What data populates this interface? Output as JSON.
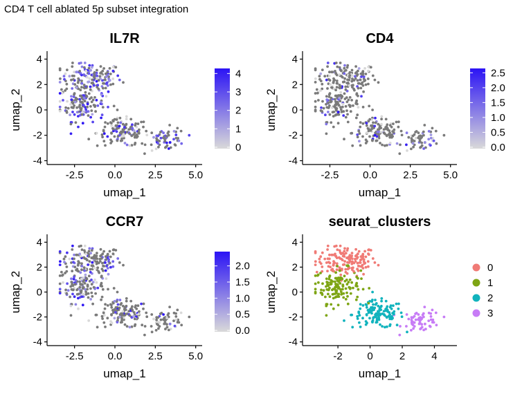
{
  "page_title": "CD4 T cell ablated 5p subset integration",
  "colors": {
    "gray": "#7a7a7a",
    "light_gray": "#d9d9d9",
    "blue": "#2b13f5",
    "cluster_0": "#f07b76",
    "cluster_1": "#7ea514",
    "cluster_2": "#11b3bd",
    "cluster_3": "#c77cf6"
  },
  "chart_data": [
    {
      "type": "scatter",
      "title": "IL7R",
      "xlabel": "umap_1",
      "ylabel": "umap_2",
      "xlim": [
        -4.2,
        5.4
      ],
      "ylim": [
        -4.3,
        4.3
      ],
      "xticks": [
        -2.5,
        0.0,
        2.5,
        5.0
      ],
      "xtick_labels": [
        "-2.5",
        "0.0",
        "2.5",
        "5.0"
      ],
      "yticks": [
        -4,
        -2,
        0,
        2,
        4
      ],
      "ytick_labels": [
        "-4",
        "-2",
        "0",
        "2",
        "4"
      ],
      "color_scale": {
        "min": 0,
        "max": 4.2,
        "ticks": [
          0,
          1,
          2,
          3,
          4
        ],
        "tick_labels": [
          "0",
          "1",
          "2",
          "3",
          "4"
        ]
      },
      "expression_fraction": 0.3,
      "max_expression": 4.2
    },
    {
      "type": "scatter",
      "title": "CD4",
      "xlabel": "umap_1",
      "ylabel": "umap_2",
      "xlim": [
        -4.2,
        5.4
      ],
      "ylim": [
        -4.3,
        4.3
      ],
      "xticks": [
        -2.5,
        0.0,
        2.5,
        5.0
      ],
      "xtick_labels": [
        "-2.5",
        "0.0",
        "2.5",
        "5.0"
      ],
      "yticks": [
        -4,
        -2,
        0,
        2,
        4
      ],
      "ytick_labels": [
        "-4",
        "-2",
        "0",
        "2",
        "4"
      ],
      "color_scale": {
        "min": 0,
        "max": 2.6,
        "ticks": [
          0,
          0.5,
          1.0,
          1.5,
          2.0,
          2.5
        ],
        "tick_labels": [
          "0.0",
          "0.5",
          "1.0",
          "1.5",
          "2.0",
          "2.5"
        ]
      },
      "expression_fraction": 0.12,
      "max_expression": 2.6
    },
    {
      "type": "scatter",
      "title": "CCR7",
      "xlabel": "umap_1",
      "ylabel": "umap_2",
      "xlim": [
        -4.2,
        5.4
      ],
      "ylim": [
        -4.3,
        4.3
      ],
      "xticks": [
        -2.5,
        0.0,
        2.5,
        5.0
      ],
      "xtick_labels": [
        "-2.5",
        "0.0",
        "2.5",
        "5.0"
      ],
      "yticks": [
        -4,
        -2,
        0,
        2,
        4
      ],
      "ytick_labels": [
        "-4",
        "-2",
        "0",
        "2",
        "4"
      ],
      "color_scale": {
        "min": 0,
        "max": 2.4,
        "ticks": [
          0,
          0.5,
          1.0,
          1.5,
          2.0
        ],
        "tick_labels": [
          "0.0",
          "0.5",
          "1.0",
          "1.5",
          "2.0"
        ]
      },
      "expression_fraction": 0.15,
      "max_expression": 2.4
    },
    {
      "type": "scatter",
      "title": "seurat_clusters",
      "xlabel": "umap_1",
      "ylabel": "umap_2",
      "xlim": [
        -4.2,
        5.4
      ],
      "ylim": [
        -4.3,
        4.3
      ],
      "xticks": [
        -2,
        0,
        2,
        4
      ],
      "xtick_labels": [
        "-2",
        "0",
        "2",
        "4"
      ],
      "yticks": [
        -4,
        -2,
        0,
        2,
        4
      ],
      "ytick_labels": [
        "-4",
        "-2",
        "0",
        "2",
        "4"
      ],
      "legend": [
        "0",
        "1",
        "2",
        "3"
      ],
      "legend_placement": "right",
      "clusters": [
        {
          "name": "0",
          "color": "#f07b76",
          "center": [
            -1.5,
            2.5
          ]
        },
        {
          "name": "1",
          "color": "#7ea514",
          "center": [
            -2.0,
            0.5
          ]
        },
        {
          "name": "2",
          "color": "#11b3bd",
          "center": [
            0.5,
            -1.8
          ]
        },
        {
          "name": "3",
          "color": "#c77cf6",
          "center": [
            3.2,
            -2.3
          ]
        }
      ]
    }
  ]
}
